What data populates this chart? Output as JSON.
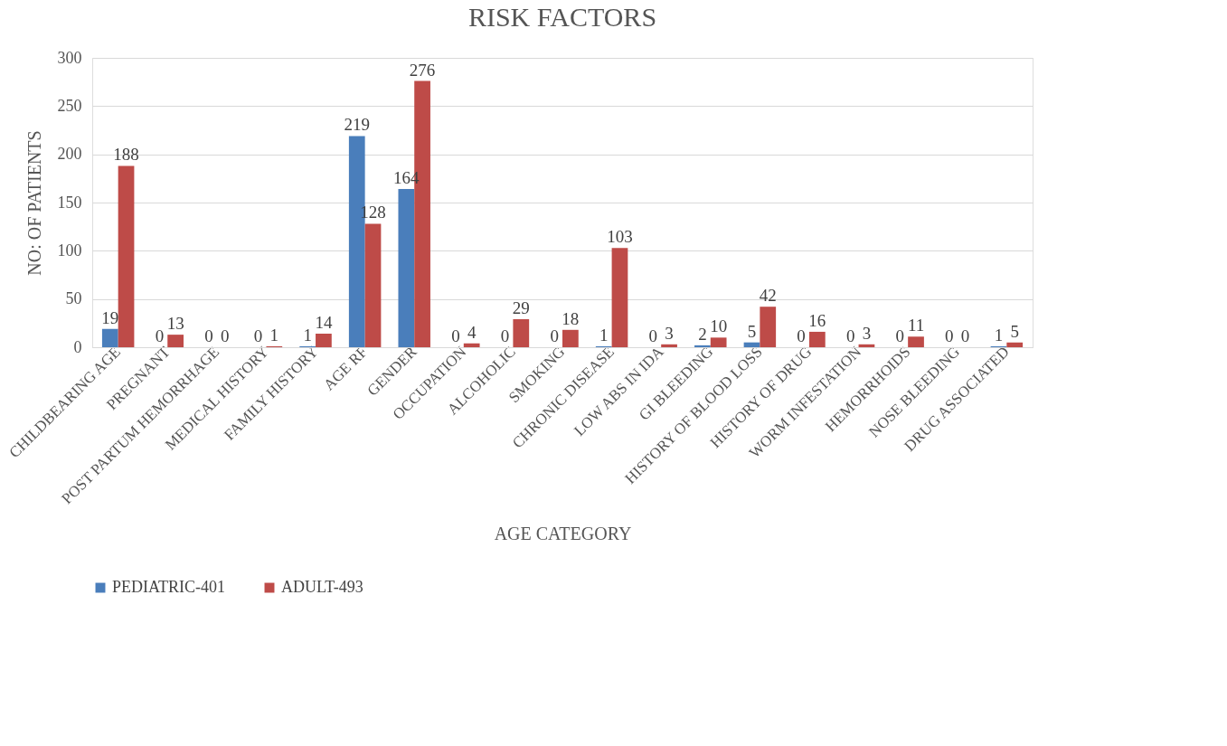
{
  "chart_data": {
    "type": "bar",
    "title": "RISK FACTORS",
    "xlabel": "AGE CATEGORY",
    "ylabel": "NO: OF PATIENTS",
    "categories": [
      "CHILDBEARING AGE",
      "PREGNANT",
      "POST PARTUM HEMORRHAGE",
      "MEDICAL HISTORY",
      "FAMILY HISTORY",
      "AGE  RF",
      "GENDER",
      "OCCUPATION",
      "ALCOHOLIC",
      "SMOKING",
      "CHRONIC DISEASE",
      "LOW ABS IN IDA",
      "GI BLEEDING",
      "HISTORY OF BLOOD LOSS",
      "HISTORY OF DRUG",
      "WORM INFESTATION",
      "HEMORRHOIDS",
      "NOSE BLEEDING",
      "DRUG ASSOCIATED"
    ],
    "series": [
      {
        "name": "PEDIATRIC-401",
        "color": "#4a7ebb",
        "values": [
          19,
          0,
          0,
          0,
          1,
          219,
          164,
          0,
          0,
          0,
          1,
          0,
          2,
          5,
          0,
          0,
          0,
          0,
          1
        ]
      },
      {
        "name": "ADULT-493",
        "color": "#be4b48",
        "values": [
          188,
          13,
          0,
          1,
          14,
          128,
          276,
          4,
          29,
          18,
          103,
          3,
          10,
          42,
          16,
          3,
          11,
          0,
          5
        ]
      }
    ],
    "ylim": [
      0,
      300
    ],
    "yticks": [
      0,
      50,
      100,
      150,
      200,
      250,
      300
    ],
    "grid": "y",
    "legend": "bottom",
    "data_labels": true
  }
}
